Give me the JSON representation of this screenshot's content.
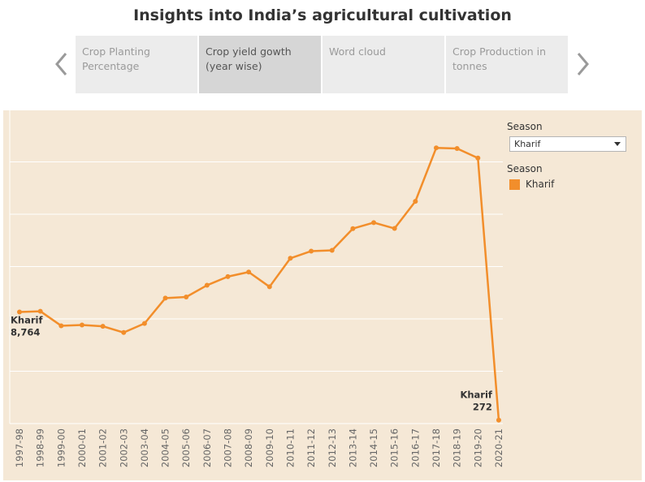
{
  "page": {
    "title": "Insights into India’s agricultural cultivation"
  },
  "nav": {
    "tabs": [
      {
        "label": "Crop Planting Percentage",
        "active": false
      },
      {
        "label": "Crop yield gowth (year wise)",
        "active": true
      },
      {
        "label": "Word cloud",
        "active": false
      },
      {
        "label": "Crop Production in tonnes",
        "active": false
      }
    ],
    "prev_icon": "chevron-left-icon",
    "next_icon": "chevron-right-icon"
  },
  "filter": {
    "title": "Season",
    "selected": "Kharif"
  },
  "legend": {
    "title": "Season",
    "items": [
      {
        "label": "Kharif",
        "color": "#f28e2b"
      }
    ]
  },
  "colors": {
    "series": "#f28e2b",
    "panel_bg": "#f5e8d6",
    "tab_bg": "#ececec",
    "tab_active_bg": "#d6d6d6"
  },
  "chart_data": {
    "type": "line",
    "x": [
      "1997-98",
      "1998-99",
      "1999-00",
      "2000-01",
      "2001-02",
      "2002-03",
      "2003-04",
      "2004-05",
      "2005-06",
      "2006-07",
      "2007-08",
      "2008-09",
      "2009-10",
      "2010-11",
      "2011-12",
      "2012-13",
      "2013-14",
      "2014-15",
      "2015-16",
      "2016-17",
      "2017-18",
      "2018-19",
      "2019-20",
      "2020-21"
    ],
    "series": [
      {
        "name": "Kharif",
        "color": "#f28e2b",
        "values": [
          8764,
          8820,
          7680,
          7740,
          7640,
          7150,
          7860,
          9850,
          9940,
          10860,
          11540,
          11900,
          10740,
          12980,
          13540,
          13600,
          15310,
          15780,
          15320,
          17450,
          21650,
          21600,
          20850,
          272
        ]
      }
    ],
    "data_labels": [
      {
        "x": "1997-98",
        "series": "Kharif",
        "text": "Kharif\n8,764"
      },
      {
        "x": "2020-21",
        "series": "Kharif",
        "text": "Kharif\n272"
      }
    ],
    "xlabel": "",
    "ylabel": "",
    "ylim": [
      0,
      23000
    ],
    "y_axis_labels": "hidden",
    "grid": true,
    "legend_position": "right"
  }
}
